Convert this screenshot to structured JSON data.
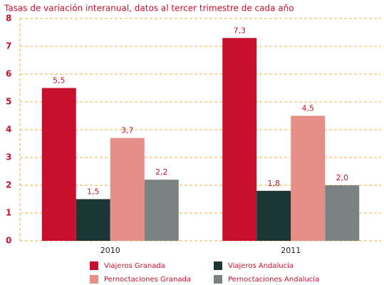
{
  "chart_data": {
    "type": "bar",
    "title": "Tasas de variación interanual, datos al tercer trimestre de cada año",
    "categories": [
      "2010",
      "2011"
    ],
    "series": [
      {
        "name": "Viajeros Granada",
        "color": "#c8102e",
        "values": [
          5.5,
          7.3
        ],
        "value_labels": [
          "5,5",
          "7,3"
        ]
      },
      {
        "name": "Viajeros Andalucía",
        "color": "#1c3535",
        "values": [
          1.5,
          1.8
        ],
        "value_labels": [
          "1,5",
          "1,8"
        ]
      },
      {
        "name": "Pernoctaciones Granada",
        "color": "#e68f88",
        "values": [
          3.7,
          4.5
        ],
        "value_labels": [
          "3,7",
          "4,5"
        ]
      },
      {
        "name": "Pernoctaciones Andalucía",
        "color": "#7a8282",
        "values": [
          2.2,
          2.0
        ],
        "value_labels": [
          "2,2",
          "2,0"
        ]
      }
    ],
    "ylim": [
      0,
      8
    ],
    "yticks": [
      0,
      1,
      2,
      3,
      4,
      5,
      6,
      7,
      8
    ],
    "grid": true
  }
}
